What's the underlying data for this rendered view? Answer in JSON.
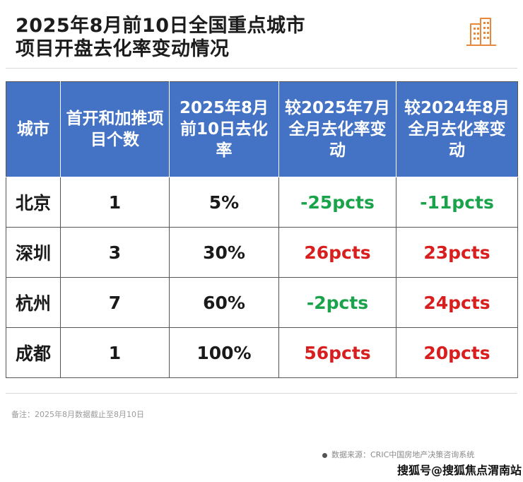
{
  "title": {
    "line1": "2025年8月前10日全国重点城市",
    "line2": "项目开盘去化率变动情况"
  },
  "logo_icon": "building-icon",
  "table": {
    "headers": [
      "城市",
      "首开和加推项目个数",
      "2025年8月前10日去化率",
      "较2025年7月全月去化率变动",
      "较2024年8月全月去化率变动"
    ],
    "rows": [
      {
        "city": "北京",
        "projects": "1",
        "rate": "5%",
        "vs_jul": "-25pcts",
        "vs_last_aug": "-11pcts"
      },
      {
        "city": "深圳",
        "projects": "3",
        "rate": "30%",
        "vs_jul": "26pcts",
        "vs_last_aug": "23pcts"
      },
      {
        "city": "杭州",
        "projects": "7",
        "rate": "60%",
        "vs_jul": "-2pcts",
        "vs_last_aug": "24pcts"
      },
      {
        "city": "成都",
        "projects": "1",
        "rate": "100%",
        "vs_jul": "56pcts",
        "vs_last_aug": "20pcts"
      }
    ]
  },
  "note": "备注：2025年8月数据截止至8月10日",
  "source": "数据来源：CRIC中国房地产决策咨询系统",
  "watermark": "搜狐号@搜狐焦点渭南站",
  "colors": {
    "header_bg": "#4472c4",
    "negative": "#1aa34a",
    "positive": "#d81e1e",
    "logo": "#e8883a"
  }
}
